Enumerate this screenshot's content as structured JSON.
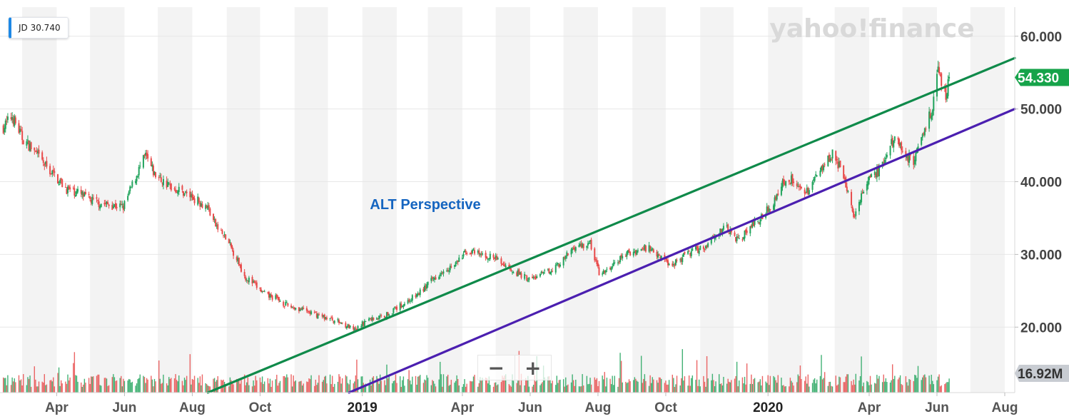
{
  "ticker_badge": {
    "label": "JD 30.740",
    "color": "#1e88e5"
  },
  "watermark": "yahoo!finance",
  "annotation": {
    "text": "ALT Perspective",
    "color": "#1565c0"
  },
  "zoom": {
    "minus": "−",
    "plus": "+"
  },
  "colors": {
    "up": "#22a45d",
    "down": "#e84a4a",
    "upper_channel": "#0f8a4a",
    "lower_channel": "#4b1fb0",
    "price_badge": "#16a34a",
    "volume_badge": "#c8ccd2"
  },
  "chart_data": {
    "type": "candlestick",
    "title": "",
    "x_ticks": [
      {
        "date": "2018-04-01",
        "label": "Apr"
      },
      {
        "date": "2018-06-01",
        "label": "Jun"
      },
      {
        "date": "2018-08-01",
        "label": "Aug"
      },
      {
        "date": "2018-10-01",
        "label": "Oct"
      },
      {
        "date": "2019-01-01",
        "label": "2019"
      },
      {
        "date": "2019-04-01",
        "label": "Apr"
      },
      {
        "date": "2019-06-01",
        "label": "Jun"
      },
      {
        "date": "2019-08-01",
        "label": "Aug"
      },
      {
        "date": "2019-10-01",
        "label": "Oct"
      },
      {
        "date": "2020-01-01",
        "label": "2020"
      },
      {
        "date": "2020-04-01",
        "label": "Apr"
      },
      {
        "date": "2020-06-01",
        "label": "Jun"
      },
      {
        "date": "2020-08-01",
        "label": "Aug"
      }
    ],
    "y_ticks": [
      "60.000",
      "50.000",
      "40.000",
      "30.000",
      "20.000"
    ],
    "y_tick_values": [
      60,
      50,
      40,
      30,
      20
    ],
    "ylim": [
      11,
      64
    ],
    "xlim": [
      "2018-02-09",
      "2020-08-10"
    ],
    "last_price": {
      "value": 54.33,
      "label": "54.330"
    },
    "last_volume": {
      "label": "16.92M"
    },
    "price_path": [
      [
        "2018-02-12",
        47.5
      ],
      [
        "2018-02-20",
        49.0
      ],
      [
        "2018-03-01",
        46.0
      ],
      [
        "2018-03-10",
        44.5
      ],
      [
        "2018-03-20",
        42.5
      ],
      [
        "2018-04-01",
        40.5
      ],
      [
        "2018-04-10",
        39.0
      ],
      [
        "2018-04-20",
        38.5
      ],
      [
        "2018-05-01",
        37.5
      ],
      [
        "2018-05-10",
        37.0
      ],
      [
        "2018-05-20",
        36.8
      ],
      [
        "2018-05-31",
        36.5
      ],
      [
        "2018-06-08",
        39.5
      ],
      [
        "2018-06-15",
        42.0
      ],
      [
        "2018-06-20",
        43.5
      ],
      [
        "2018-06-28",
        41.0
      ],
      [
        "2018-07-10",
        39.5
      ],
      [
        "2018-07-25",
        38.5
      ],
      [
        "2018-08-05",
        37.5
      ],
      [
        "2018-08-15",
        36.5
      ],
      [
        "2018-08-22",
        34.0
      ],
      [
        "2018-09-01",
        32.0
      ],
      [
        "2018-09-10",
        29.5
      ],
      [
        "2018-09-17",
        27.0
      ],
      [
        "2018-09-25",
        26.0
      ],
      [
        "2018-10-05",
        24.5
      ],
      [
        "2018-10-15",
        24.0
      ],
      [
        "2018-10-25",
        23.0
      ],
      [
        "2018-11-05",
        22.5
      ],
      [
        "2018-11-15",
        22.0
      ],
      [
        "2018-11-25",
        21.5
      ],
      [
        "2018-12-05",
        21.0
      ],
      [
        "2018-12-15",
        20.5
      ],
      [
        "2018-12-25",
        19.5
      ],
      [
        "2019-01-05",
        21.0
      ],
      [
        "2019-01-20",
        21.5
      ],
      [
        "2019-02-05",
        23.0
      ],
      [
        "2019-02-20",
        24.5
      ],
      [
        "2019-03-05",
        26.5
      ],
      [
        "2019-03-15",
        28.0
      ],
      [
        "2019-03-25",
        28.5
      ],
      [
        "2019-04-05",
        30.5
      ],
      [
        "2019-04-15",
        30.0
      ],
      [
        "2019-04-30",
        29.5
      ],
      [
        "2019-05-10",
        28.5
      ],
      [
        "2019-05-20",
        27.5
      ],
      [
        "2019-06-01",
        26.5
      ],
      [
        "2019-06-15",
        27.5
      ],
      [
        "2019-06-30",
        29.0
      ],
      [
        "2019-07-10",
        31.0
      ],
      [
        "2019-07-25",
        31.5
      ],
      [
        "2019-08-03",
        27.0
      ],
      [
        "2019-08-15",
        28.5
      ],
      [
        "2019-08-25",
        30.0
      ],
      [
        "2019-09-05",
        30.5
      ],
      [
        "2019-09-15",
        31.0
      ],
      [
        "2019-09-25",
        30.0
      ],
      [
        "2019-10-05",
        28.5
      ],
      [
        "2019-10-15",
        29.5
      ],
      [
        "2019-10-25",
        30.5
      ],
      [
        "2019-11-05",
        31.0
      ],
      [
        "2019-11-15",
        33.0
      ],
      [
        "2019-11-25",
        33.5
      ],
      [
        "2019-12-05",
        32.0
      ],
      [
        "2019-12-15",
        33.5
      ],
      [
        "2019-12-25",
        35.0
      ],
      [
        "2020-01-05",
        37.0
      ],
      [
        "2020-01-15",
        40.0
      ],
      [
        "2020-01-25",
        40.5
      ],
      [
        "2020-02-03",
        38.0
      ],
      [
        "2020-02-12",
        40.5
      ],
      [
        "2020-02-20",
        42.5
      ],
      [
        "2020-02-28",
        44.0
      ],
      [
        "2020-03-05",
        42.0
      ],
      [
        "2020-03-12",
        39.0
      ],
      [
        "2020-03-18",
        35.5
      ],
      [
        "2020-03-25",
        38.0
      ],
      [
        "2020-04-02",
        40.5
      ],
      [
        "2020-04-10",
        41.5
      ],
      [
        "2020-04-18",
        44.0
      ],
      [
        "2020-04-25",
        46.5
      ],
      [
        "2020-05-01",
        44.5
      ],
      [
        "2020-05-10",
        42.5
      ],
      [
        "2020-05-16",
        45.0
      ],
      [
        "2020-05-22",
        48.0
      ],
      [
        "2020-05-28",
        50.0
      ],
      [
        "2020-06-02",
        55.0
      ],
      [
        "2020-06-05",
        54.0
      ],
      [
        "2020-06-09",
        52.0
      ],
      [
        "2020-06-12",
        54.3
      ]
    ],
    "channel_lines": [
      {
        "name": "upper",
        "from": [
          "2018-08-15",
          11.0
        ],
        "to": [
          "2020-08-10",
          57.0
        ]
      },
      {
        "name": "lower",
        "from": [
          "2018-12-20",
          11.0
        ],
        "to": [
          "2020-08-10",
          50.0
        ]
      }
    ]
  }
}
